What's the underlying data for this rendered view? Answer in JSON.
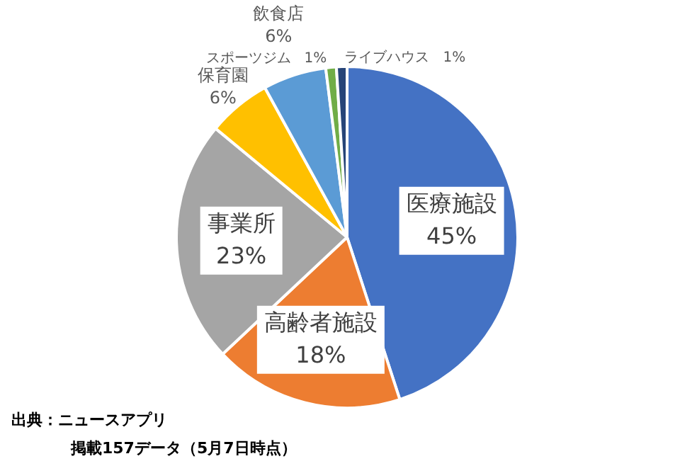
{
  "chart_data": {
    "type": "pie",
    "categories": [
      "医療施設",
      "高齢者施設",
      "事業所",
      "保育園",
      "飲食店",
      "スポーツジム",
      "ライブハウス"
    ],
    "values": [
      45,
      18,
      23,
      6,
      6,
      1,
      1
    ],
    "value_labels": [
      "45%",
      "18%",
      "23%",
      "6%",
      "6%",
      "1%",
      "1%"
    ],
    "colors": [
      "#4472c4",
      "#ed7d31",
      "#a5a5a5",
      "#ffc000",
      "#5b9bd5",
      "#70ad47",
      "#264478"
    ],
    "legend": false,
    "annotations": [
      "出典：ニュースアプリ",
      "掲載157データ（5月7日時点）"
    ]
  }
}
